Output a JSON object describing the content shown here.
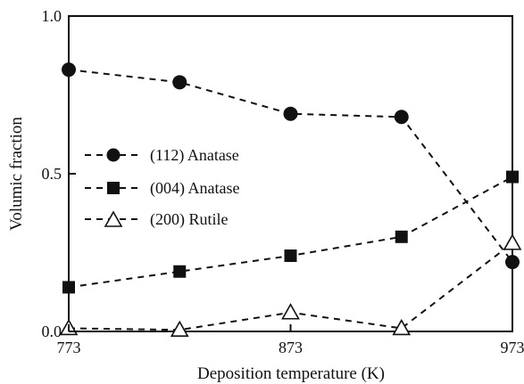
{
  "chart_data": {
    "type": "line",
    "x": [
      773,
      823,
      873,
      923,
      973
    ],
    "xlabel": "Deposition temperature (K)",
    "ylabel": "Volumic fraction",
    "xlim": [
      773,
      973
    ],
    "ylim": [
      0.0,
      1.0
    ],
    "xticks": [
      773,
      873,
      973
    ],
    "xtick_labels": [
      "773",
      "873",
      "973"
    ],
    "yticks": [
      0.0,
      0.5,
      1.0
    ],
    "ytick_labels": [
      "0.0",
      "0.5",
      "1.0"
    ],
    "grid": false,
    "legend_position": "left-center",
    "series": [
      {
        "name": "(112) Anatase",
        "marker": "circle",
        "filled": true,
        "values": [
          0.83,
          0.79,
          0.69,
          0.68,
          0.22
        ]
      },
      {
        "name": "(004) Anatase",
        "marker": "square",
        "filled": true,
        "values": [
          0.14,
          0.19,
          0.24,
          0.3,
          0.49
        ]
      },
      {
        "name": "(200) Rutile",
        "marker": "triangle",
        "filled": false,
        "values": [
          0.01,
          0.005,
          0.06,
          0.01,
          0.28
        ]
      }
    ]
  }
}
